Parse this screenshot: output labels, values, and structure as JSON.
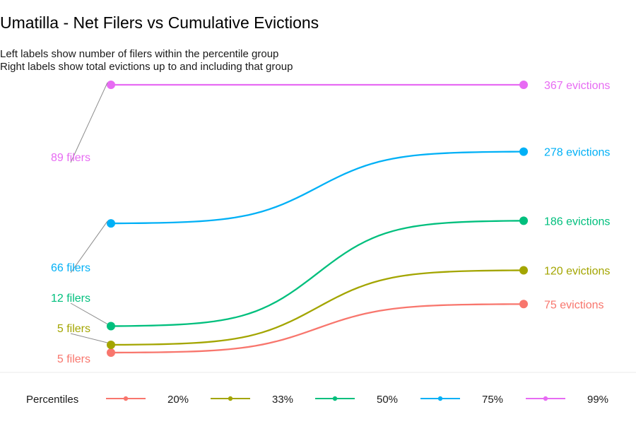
{
  "chart_data": {
    "type": "line",
    "title": "Umatilla - Net Filers vs Cumulative Evictions",
    "subtitle": [
      "Left labels show number of filers within the percentile group",
      "Right labels show total evictions up to and including that group"
    ],
    "legend": {
      "title": "Percentiles",
      "placement": "bottom"
    },
    "series": [
      {
        "name": "20%",
        "color": "#F8766D",
        "filers": 5,
        "evictions": 75,
        "left_label": "5 filers",
        "right_label": "75 evictions"
      },
      {
        "name": "33%",
        "color": "#A3A500",
        "filers": 5,
        "evictions": 120,
        "left_label": "5 filers",
        "right_label": "120 evictions"
      },
      {
        "name": "50%",
        "color": "#00BF7D",
        "filers": 12,
        "evictions": 186,
        "left_label": "12 filers",
        "right_label": "186 evictions"
      },
      {
        "name": "75%",
        "color": "#00B0F6",
        "filers": 66,
        "evictions": 278,
        "left_label": "66 filers",
        "right_label": "278 evictions"
      },
      {
        "name": "99%",
        "color": "#E76BF3",
        "filers": 89,
        "evictions": 367,
        "left_label": "89 filers",
        "right_label": "367 evictions"
      }
    ]
  }
}
